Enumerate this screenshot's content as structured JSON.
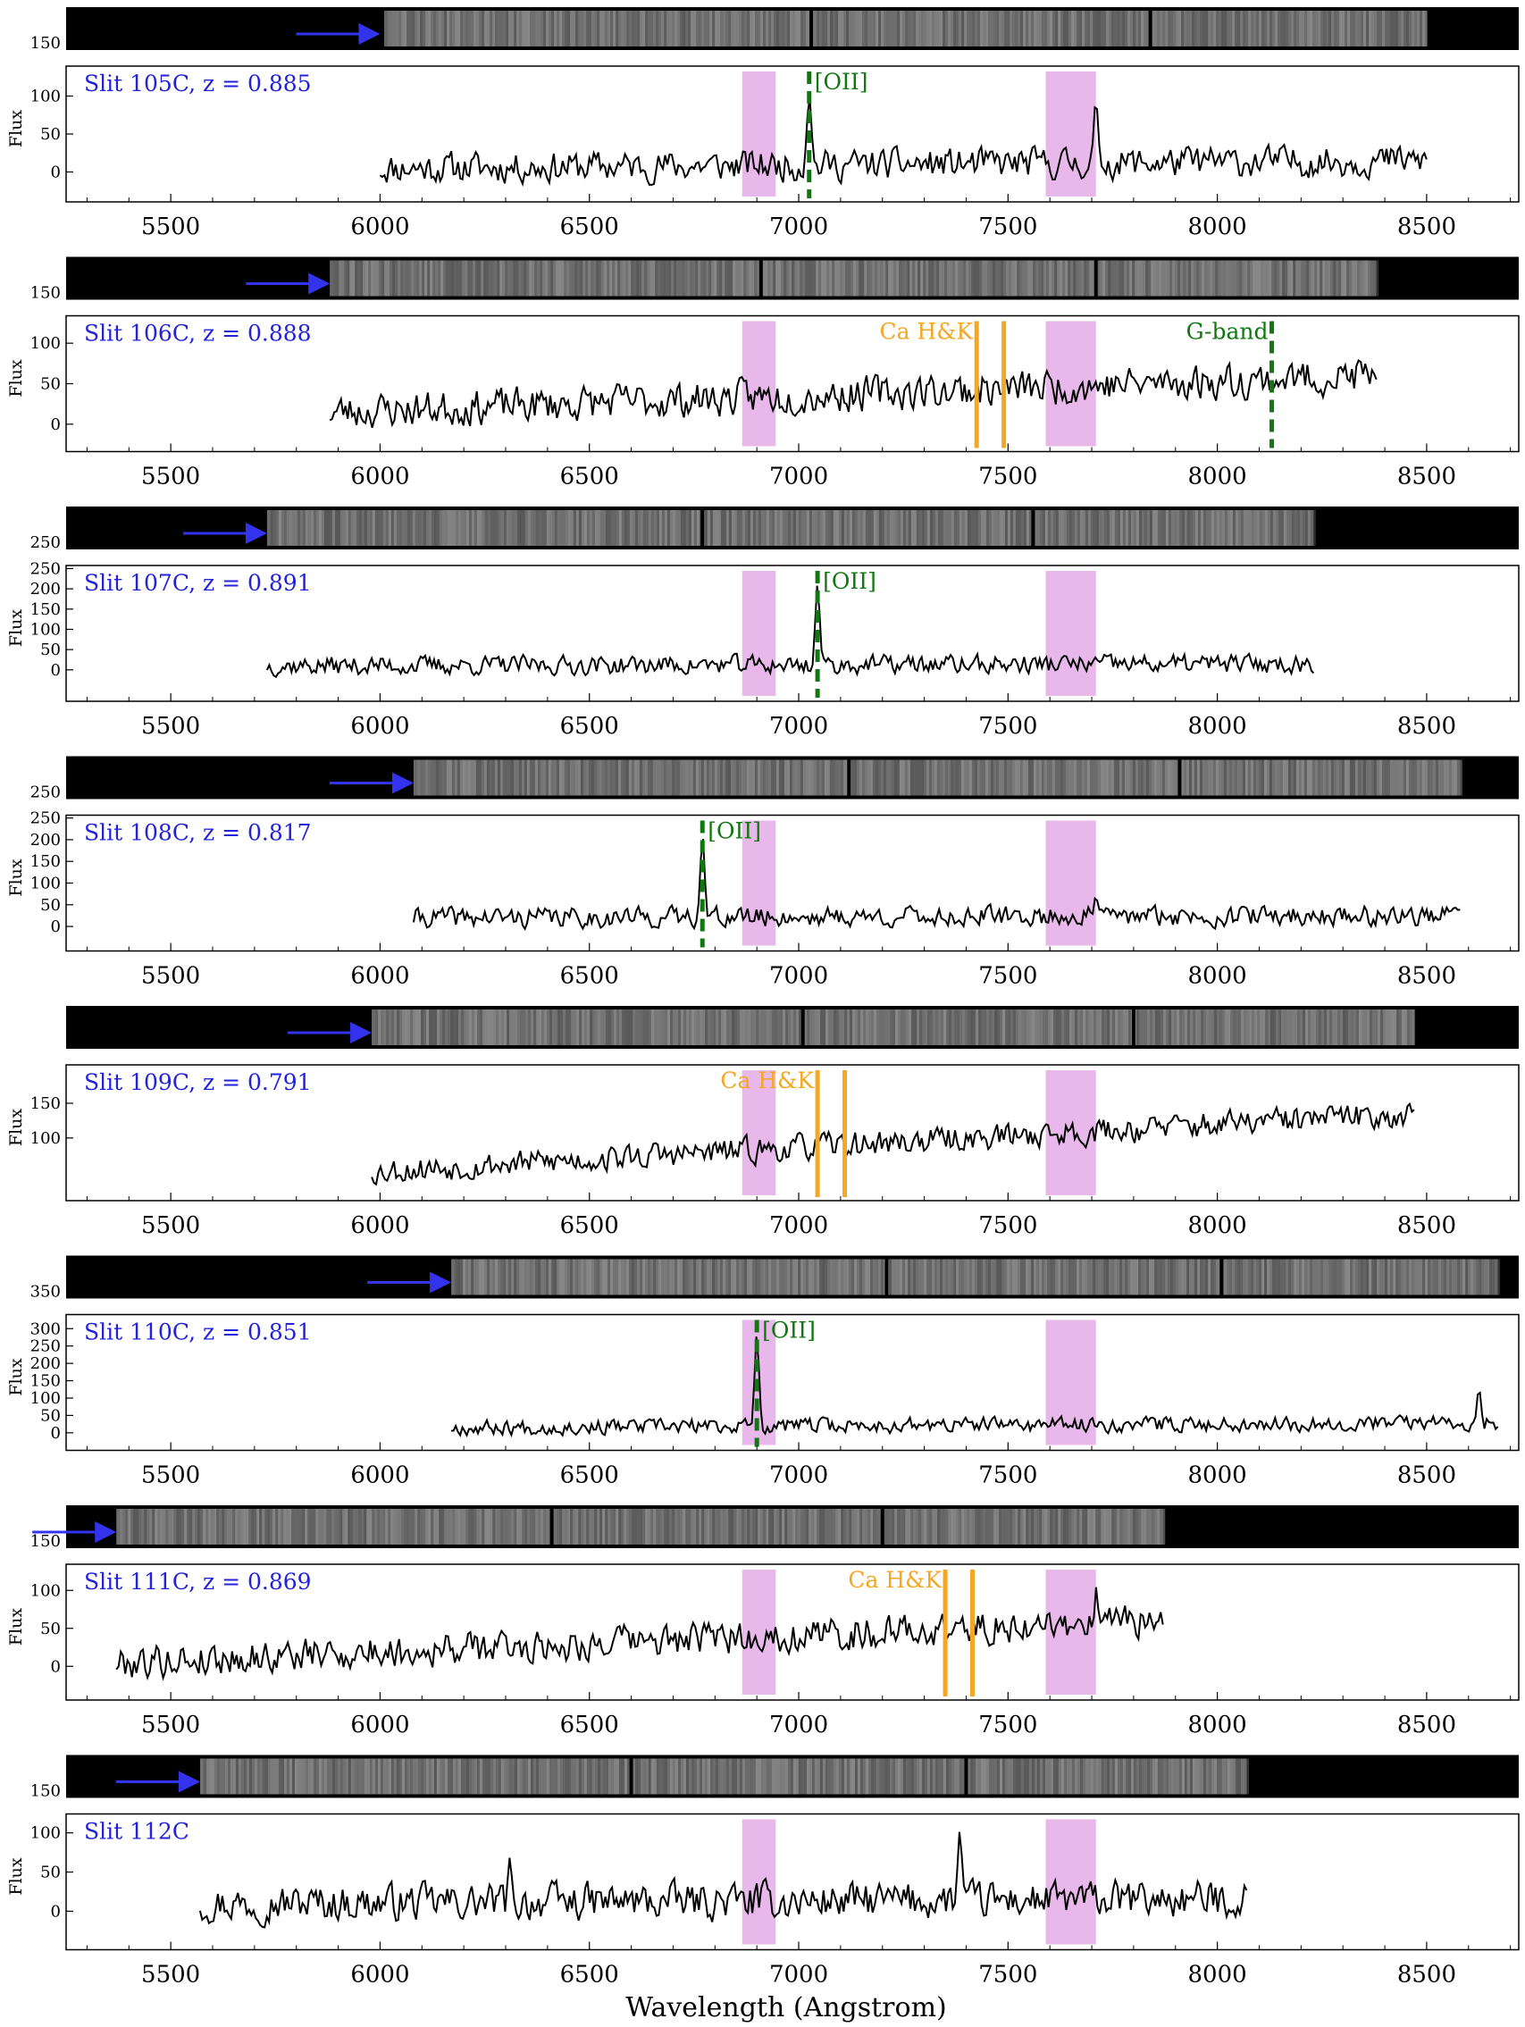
{
  "figure": {
    "xlabel": "Wavelength (Angstrom)",
    "ylabel": "Flux",
    "xlim": [
      5250,
      8720
    ],
    "xticks": [
      5500,
      6000,
      6500,
      7000,
      7500,
      8000,
      8500
    ],
    "colors": {
      "spectrum": "#000000",
      "label": "#2222dd",
      "arrow": "#3333ee",
      "oii": "#117711",
      "gband": "#117711",
      "cahk": "#f5a623",
      "telluric": "#e8b8ea",
      "strip": "#000000"
    },
    "telluric_bands": [
      [
        6865,
        6945
      ],
      [
        7590,
        7710
      ]
    ]
  },
  "chart_data": [
    {
      "type": "line",
      "slit": "Slit 105C",
      "z_text": "z = 0.885",
      "x_range": [
        6000,
        8500
      ],
      "ylim": [
        -30,
        130
      ],
      "yticks": [
        0,
        50,
        100,
        150
      ],
      "strip_tick": 150,
      "strip_range": [
        6010,
        8500
      ],
      "strip_breaks": [
        7030,
        7840
      ],
      "arrow_to": 6000,
      "features": [
        {
          "kind": "oii",
          "label": "[OII]",
          "wavelength": 7025,
          "style": "dashed"
        }
      ],
      "spikes": [
        {
          "x": 7025,
          "y": 112
        },
        {
          "x": 7710,
          "y": 108
        }
      ],
      "base_start": 5,
      "base_end": 15,
      "noise": 14,
      "seed": 11
    },
    {
      "type": "line",
      "slit": "Slit 106C",
      "z_text": "z = 0.888",
      "x_range": [
        5880,
        8380
      ],
      "ylim": [
        -25,
        125
      ],
      "yticks": [
        0,
        50,
        100,
        150
      ],
      "strip_tick": 150,
      "strip_range": [
        5880,
        8380
      ],
      "strip_breaks": [
        6910,
        7710
      ],
      "arrow_to": 5880,
      "features": [
        {
          "kind": "cahk",
          "label": "Ca H&K",
          "wavelengths": [
            7425,
            7490
          ]
        },
        {
          "kind": "gband",
          "label": "G-band",
          "wavelength": 8130,
          "style": "dashed"
        }
      ],
      "spikes": [
        {
          "x": 8340,
          "y": 100
        }
      ],
      "base_start": 15,
      "base_end": 60,
      "noise": 15,
      "seed": 23
    },
    {
      "type": "line",
      "slit": "Slit 107C",
      "z_text": "z = 0.891",
      "x_range": [
        5730,
        8230
      ],
      "ylim": [
        -60,
        240
      ],
      "yticks": [
        0,
        50,
        100,
        150,
        200,
        250
      ],
      "strip_tick": 250,
      "strip_range": [
        5730,
        8230
      ],
      "strip_breaks": [
        6770,
        7560
      ],
      "arrow_to": 5730,
      "features": [
        {
          "kind": "oii",
          "label": "[OII]",
          "wavelength": 7045,
          "style": "dashed"
        }
      ],
      "spikes": [
        {
          "x": 7045,
          "y": 230
        }
      ],
      "base_start": 10,
      "base_end": 15,
      "noise": 16,
      "seed": 37
    },
    {
      "type": "line",
      "slit": "Slit 108C",
      "z_text": "z = 0.817",
      "x_range": [
        6080,
        8580
      ],
      "ylim": [
        -40,
        240
      ],
      "yticks": [
        0,
        50,
        100,
        150,
        200,
        250
      ],
      "strip_tick": 250,
      "strip_range": [
        6080,
        8580
      ],
      "strip_breaks": [
        7120,
        7910
      ],
      "arrow_to": 6080,
      "features": [
        {
          "kind": "oii",
          "label": "[OII]",
          "wavelength": 6770,
          "style": "dashed"
        }
      ],
      "spikes": [
        {
          "x": 6770,
          "y": 230
        },
        {
          "x": 7710,
          "y": 80
        }
      ],
      "base_start": 20,
      "base_end": 25,
      "noise": 16,
      "seed": 41
    },
    {
      "type": "line",
      "slit": "Slit 109C",
      "z_text": "z = 0.791",
      "x_range": [
        5980,
        8470
      ],
      "ylim": [
        20,
        195
      ],
      "yticks": [
        100,
        150
      ],
      "strip_tick": null,
      "strip_range": [
        5980,
        8470
      ],
      "strip_breaks": [
        7010,
        7800
      ],
      "arrow_to": 5980,
      "features": [
        {
          "kind": "cahk",
          "label": "Ca H&K",
          "wavelengths": [
            7045,
            7110
          ]
        }
      ],
      "spikes": [],
      "base_start": 52,
      "base_end": 135,
      "noise": 13,
      "seed": 53
    },
    {
      "type": "line",
      "slit": "Slit 110C",
      "z_text": "z = 0.851",
      "x_range": [
        6170,
        8670
      ],
      "ylim": [
        -30,
        320
      ],
      "yticks": [
        0,
        50,
        100,
        150,
        200,
        250,
        300,
        350
      ],
      "strip_tick": 350,
      "strip_range": [
        6170,
        8670
      ],
      "strip_breaks": [
        7210,
        8010
      ],
      "arrow_to": 6170,
      "features": [
        {
          "kind": "oii",
          "label": "[OII]",
          "wavelength": 6900,
          "style": "dashed"
        }
      ],
      "spikes": [
        {
          "x": 6900,
          "y": 310
        },
        {
          "x": 8625,
          "y": 145
        }
      ],
      "base_start": 15,
      "base_end": 30,
      "noise": 15,
      "seed": 67
    },
    {
      "type": "line",
      "slit": "Slit 111C",
      "z_text": "z = 0.869",
      "x_range": [
        5370,
        7870
      ],
      "ylim": [
        -35,
        125
      ],
      "yticks": [
        0,
        50,
        100,
        150
      ],
      "strip_tick": 150,
      "strip_range": [
        5370,
        7870
      ],
      "strip_breaks": [
        6410,
        7200
      ],
      "arrow_to": 5370,
      "features": [
        {
          "kind": "cahk",
          "label": "Ca H&K",
          "wavelengths": [
            7350,
            7415
          ]
        }
      ],
      "spikes": [
        {
          "x": 7710,
          "y": 108
        }
      ],
      "base_start": 5,
      "base_end": 60,
      "noise": 15,
      "seed": 79
    },
    {
      "type": "line",
      "slit": "Slit 112C",
      "z_text": "",
      "x_range": [
        5570,
        8070
      ],
      "ylim": [
        -40,
        115
      ],
      "yticks": [
        0,
        50,
        100,
        150
      ],
      "strip_tick": 150,
      "strip_range": [
        5570,
        8070
      ],
      "strip_breaks": [
        6600,
        7400
      ],
      "arrow_to": 5570,
      "features": [],
      "spikes": [
        {
          "x": 6310,
          "y": 72
        },
        {
          "x": 7385,
          "y": 112
        }
      ],
      "base_start": 10,
      "base_end": 15,
      "noise": 16,
      "seed": 97
    }
  ]
}
